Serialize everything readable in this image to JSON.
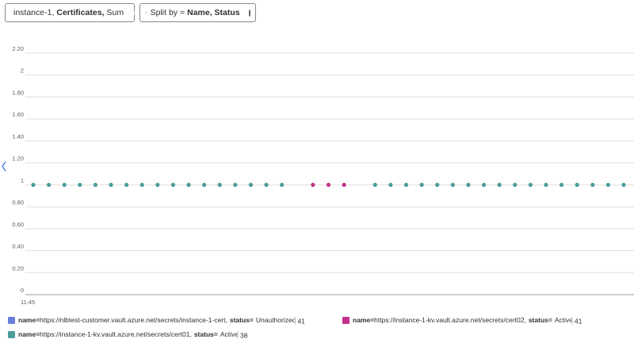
{
  "pills": [
    {
      "prefix": "instance-1,",
      "bold": "Certificates,",
      "suffix": "Sum"
    },
    {
      "prefix": "Split by =",
      "bold": "Name, Status"
    }
  ],
  "chart_data": {
    "type": "scatter",
    "categories": [
      "11:45",
      null,
      null,
      null,
      null,
      null,
      null,
      null,
      null,
      null,
      null,
      null,
      null,
      null,
      null,
      null,
      null,
      null,
      null,
      null,
      null,
      null,
      null,
      null,
      null,
      null,
      null,
      null,
      null,
      null,
      null,
      null,
      null,
      null,
      null,
      null,
      null,
      null,
      null
    ],
    "ylim": [
      0,
      2.2
    ],
    "yticks": [
      0,
      {
        "value": 0.2,
        "label": "0.20"
      },
      {
        "value": 0.4,
        "label": "0.40"
      },
      {
        "value": 0.6,
        "label": "0.60"
      },
      {
        "value": 0.8,
        "label": "0.80"
      },
      1,
      {
        "value": 1.2,
        "label": "1.20"
      },
      {
        "value": 1.4,
        "label": "1.40"
      },
      {
        "value": 1.6,
        "label": "1.60"
      },
      {
        "value": 1.8,
        "label": "1.80"
      },
      2,
      {
        "value": 2.2,
        "label": "2.20"
      }
    ],
    "grid": true,
    "name_key": "name=",
    "status_key": "status=",
    "series": [
      {
        "name": "https://nlbtest-customer.vault.azure.net/secrets/instance-1-cert,",
        "status": "Unauthorized",
        "total": 41,
        "color": "#6b7fe0",
        "values": [
          null,
          null,
          null,
          null,
          null,
          null,
          null,
          null,
          null,
          null,
          null,
          null,
          null,
          null,
          null,
          null,
          null,
          null,
          null,
          null,
          null,
          null,
          null,
          null,
          null,
          null,
          null,
          null,
          null,
          null,
          null,
          null,
          null,
          null,
          null,
          null,
          null,
          null,
          null
        ]
      },
      {
        "name": "https://instance-1-kv.vault.azure.net/secrets/cert02,",
        "status": "Active",
        "total": 41,
        "color": "#c4318a",
        "values": [
          null,
          null,
          null,
          null,
          null,
          null,
          null,
          null,
          null,
          null,
          null,
          null,
          null,
          null,
          null,
          null,
          null,
          null,
          1,
          1,
          1,
          null,
          null,
          null,
          null,
          null,
          null,
          null,
          null,
          null,
          null,
          null,
          null,
          null,
          null,
          null,
          null,
          null,
          null
        ]
      },
      {
        "name": "https://instance-1-kv.vault.azure.net/secrets/cert01,",
        "status": "Active",
        "total": 38,
        "color": "#4a9d9c",
        "values": [
          1,
          1,
          1,
          1,
          1,
          1,
          1,
          1,
          1,
          1,
          1,
          1,
          1,
          1,
          1,
          1,
          1,
          null,
          null,
          null,
          null,
          null,
          1,
          1,
          1,
          1,
          1,
          1,
          1,
          1,
          1,
          1,
          1,
          1,
          1,
          1,
          1,
          1,
          1
        ]
      }
    ]
  }
}
